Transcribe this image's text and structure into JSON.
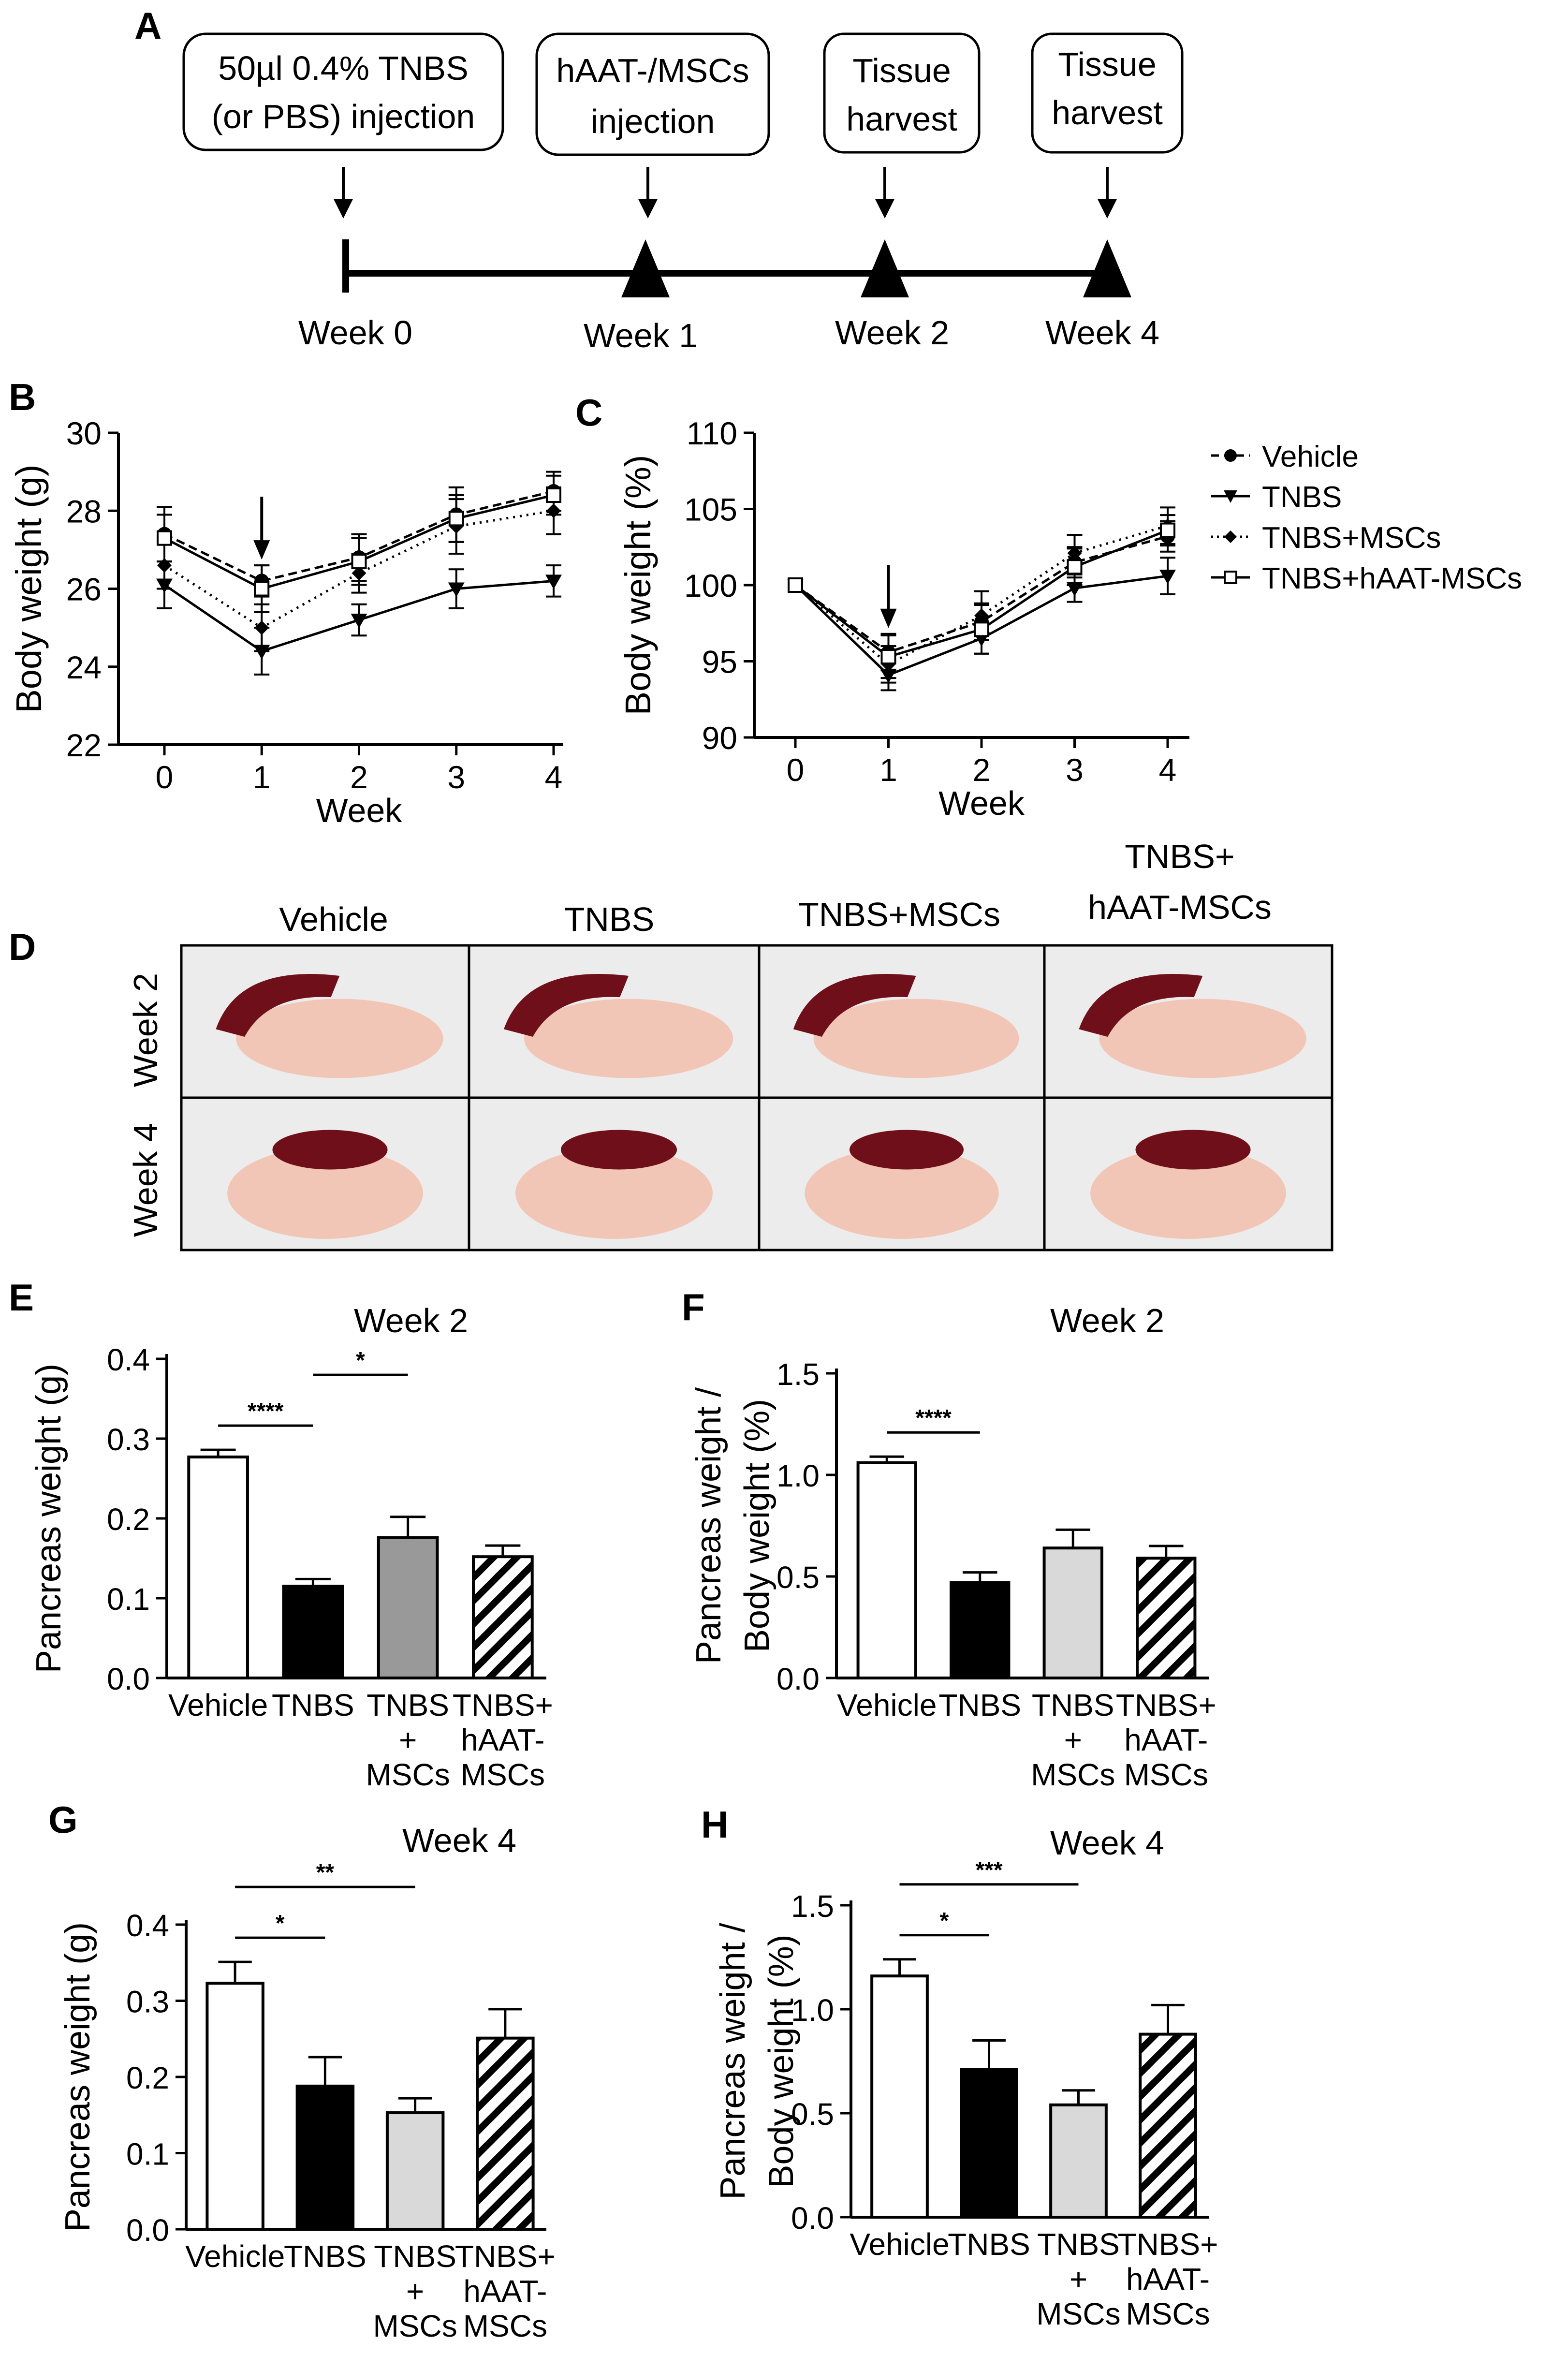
{
  "panel_letters": {
    "A": "A",
    "B": "B",
    "C": "C",
    "D": "D",
    "E": "E",
    "F": "F",
    "G": "G",
    "H": "H"
  },
  "timeline": {
    "boxes": [
      "50µl 0.4% TNBS",
      "(or PBS) injection",
      "hAAT-/MSCs",
      "injection",
      "Tissue",
      "harvest",
      "Tissue",
      "harvest"
    ],
    "weeks": [
      "Week 0",
      "Week 1",
      "Week 2",
      "Week 4"
    ]
  },
  "legend": [
    "Vehicle",
    "TNBS",
    "TNBS+MSCs",
    "TNBS+hAAT-MSCs"
  ],
  "photos": {
    "col_labels": [
      "Vehicle",
      "TNBS",
      "TNBS+MSCs",
      "TNBS+",
      "hAAT-MSCs"
    ],
    "row_labels": [
      "Week 2",
      "Week 4"
    ],
    "spleen_color": "#6e0f1a",
    "pancreas_color": "#f1c6b6",
    "background_color": "#ececec"
  },
  "bar_groups": [
    "Vehicle",
    "TNBS",
    "TNBS",
    "+",
    "MSCs",
    "TNBS+",
    "hAAT-",
    "MSCs"
  ],
  "colors": {
    "vehicle_fill": "#ffffff",
    "tnbs_fill": "#000000",
    "msc_fill_E": "#999999",
    "msc_fill": "#d9d9d9"
  },
  "chart_data": [
    {
      "panel": "B",
      "type": "line",
      "x": [
        0,
        1,
        2,
        3,
        4
      ],
      "xlabel": "Week",
      "ylabel": "Body weight (g)",
      "xticks": [
        "0",
        "1",
        "2",
        "3",
        "4"
      ],
      "yticks": [
        "22",
        "24",
        "26",
        "28",
        "30"
      ],
      "ylim": [
        22,
        30
      ],
      "series": [
        {
          "name": "Vehicle",
          "style": "dash",
          "marker": "circle",
          "values": [
            27.4,
            26.2,
            26.8,
            27.9,
            28.5
          ],
          "err": [
            0.7,
            0.4,
            0.6,
            0.7,
            0.5
          ]
        },
        {
          "name": "TNBS",
          "style": "solid",
          "marker": "triangle-down",
          "values": [
            26.1,
            24.4,
            25.2,
            26.0,
            26.2
          ],
          "err": [
            0.6,
            0.6,
            0.4,
            0.5,
            0.4
          ]
        },
        {
          "name": "TNBS+MSCs",
          "style": "dot",
          "marker": "diamond",
          "values": [
            26.6,
            25.0,
            26.4,
            27.6,
            28.0
          ],
          "err": [
            0.6,
            0.6,
            0.5,
            0.7,
            0.6
          ]
        },
        {
          "name": "TNBS+hAAT-MSCs",
          "style": "solid",
          "marker": "square",
          "values": [
            27.3,
            26.0,
            26.7,
            27.8,
            28.4
          ],
          "err": [
            0.6,
            0.6,
            0.6,
            0.6,
            0.5
          ]
        }
      ],
      "annotation": "arrow at week 1"
    },
    {
      "panel": "C",
      "type": "line",
      "x": [
        0,
        1,
        2,
        3,
        4
      ],
      "xlabel": "Week",
      "ylabel": "Body weight (%)",
      "xticks": [
        "0",
        "1",
        "2",
        "3",
        "4"
      ],
      "yticks": [
        "90",
        "95",
        "100",
        "105",
        "110"
      ],
      "ylim": [
        90,
        110
      ],
      "series": [
        {
          "name": "Vehicle",
          "style": "dash",
          "marker": "circle",
          "values": [
            100,
            95.6,
            97.6,
            101.5,
            103.2
          ],
          "err": [
            0,
            1.2,
            1.2,
            1.0,
            1.0
          ]
        },
        {
          "name": "TNBS",
          "style": "solid",
          "marker": "triangle-down",
          "values": [
            100,
            94.1,
            96.5,
            99.8,
            100.6
          ],
          "err": [
            0,
            1.0,
            1.0,
            0.9,
            1.2
          ]
        },
        {
          "name": "TNBS+MSCs",
          "style": "dot",
          "marker": "diamond",
          "values": [
            100,
            94.8,
            98.0,
            102.1,
            103.9
          ],
          "err": [
            0,
            1.2,
            1.6,
            1.2,
            1.2
          ]
        },
        {
          "name": "TNBS+hAAT-MSCs",
          "style": "solid",
          "marker": "square",
          "values": [
            100,
            95.3,
            97.1,
            101.2,
            103.6
          ],
          "err": [
            0,
            1.4,
            1.6,
            1.2,
            1.0
          ]
        }
      ],
      "annotation": "arrow at week 1"
    },
    {
      "panel": "E",
      "type": "bar",
      "title": "Week 2",
      "categories": [
        "Vehicle",
        "TNBS",
        "TNBS + MSCs",
        "TNBS+ hAAT-MSCs"
      ],
      "values": [
        0.277,
        0.115,
        0.176,
        0.152
      ],
      "err": [
        0.009,
        0.009,
        0.026,
        0.014
      ],
      "ylabel": "Pancreas weight (g)",
      "yticks": [
        "0.0",
        "0.1",
        "0.2",
        "0.3",
        "0.4"
      ],
      "ylim": [
        0,
        0.4
      ],
      "significance": [
        {
          "from": 0,
          "to": 1,
          "label": "****"
        },
        {
          "from": 1,
          "to": 2,
          "label": "*"
        }
      ]
    },
    {
      "panel": "F",
      "type": "bar",
      "title": "Week 2",
      "categories": [
        "Vehicle",
        "TNBS",
        "TNBS + MSCs",
        "TNBS+ hAAT-MSCs"
      ],
      "values": [
        1.06,
        0.47,
        0.64,
        0.59
      ],
      "err": [
        0.03,
        0.05,
        0.09,
        0.06
      ],
      "ylabel": "Pancreas weight / Body weight (%)",
      "ylabel_lines": [
        "Pancreas weight /",
        "Body weight (%)"
      ],
      "yticks": [
        "0.0",
        "0.5",
        "1.0",
        "1.5"
      ],
      "ylim": [
        0,
        1.5
      ],
      "significance": [
        {
          "from": 0,
          "to": 1,
          "label": "****"
        }
      ]
    },
    {
      "panel": "G",
      "type": "bar",
      "title": "Week 4",
      "categories": [
        "Vehicle",
        "TNBS",
        "TNBS + MSCs",
        "TNBS+ hAAT-MSCs"
      ],
      "values": [
        0.323,
        0.188,
        0.153,
        0.251
      ],
      "err": [
        0.028,
        0.038,
        0.019,
        0.038
      ],
      "ylabel": "Pancreas weight (g)",
      "yticks": [
        "0.0",
        "0.1",
        "0.2",
        "0.3",
        "0.4"
      ],
      "ylim": [
        0,
        0.4
      ],
      "significance": [
        {
          "from": 0,
          "to": 1,
          "label": "*"
        },
        {
          "from": 0,
          "to": 2,
          "label": "**"
        }
      ]
    },
    {
      "panel": "H",
      "type": "bar",
      "title": "Week 4",
      "categories": [
        "Vehicle",
        "TNBS",
        "TNBS + MSCs",
        "TNBS+ hAAT-MSCs"
      ],
      "values": [
        1.16,
        0.71,
        0.54,
        0.88
      ],
      "err": [
        0.08,
        0.14,
        0.07,
        0.14
      ],
      "ylabel": "Pancreas weight / Body weight (%)",
      "ylabel_lines": [
        "Pancreas weight /",
        "Body weight (%)"
      ],
      "yticks": [
        "0.0",
        "0.5",
        "1.0",
        "1.5"
      ],
      "ylim": [
        0,
        1.5
      ],
      "significance": [
        {
          "from": 0,
          "to": 1,
          "label": "*"
        },
        {
          "from": 0,
          "to": 2,
          "label": "***"
        }
      ]
    }
  ]
}
